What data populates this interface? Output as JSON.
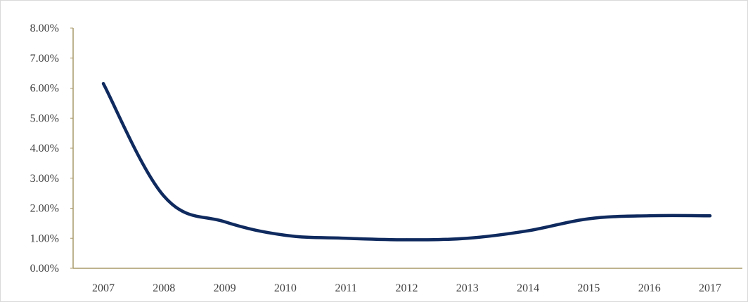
{
  "chart_data": {
    "type": "line",
    "title": "",
    "xlabel": "",
    "ylabel": "",
    "categories": [
      "2007",
      "2008",
      "2009",
      "2010",
      "2011",
      "2012",
      "2013",
      "2014",
      "2015",
      "2016",
      "2017"
    ],
    "series": [
      {
        "values": [
          6.15,
          2.4,
          1.55,
          1.1,
          1.0,
          0.95,
          1.0,
          1.25,
          1.65,
          1.75,
          1.75
        ]
      }
    ],
    "ylim": [
      0,
      8
    ],
    "yticks": [
      "0.00%",
      "1.00%",
      "2.00%",
      "3.00%",
      "4.00%",
      "5.00%",
      "6.00%",
      "7.00%",
      "8.00%"
    ],
    "grid": false,
    "legend": "none",
    "colors": {
      "line": "#0f2a5e",
      "axis": "#a89a6a",
      "text": "#404040"
    }
  }
}
